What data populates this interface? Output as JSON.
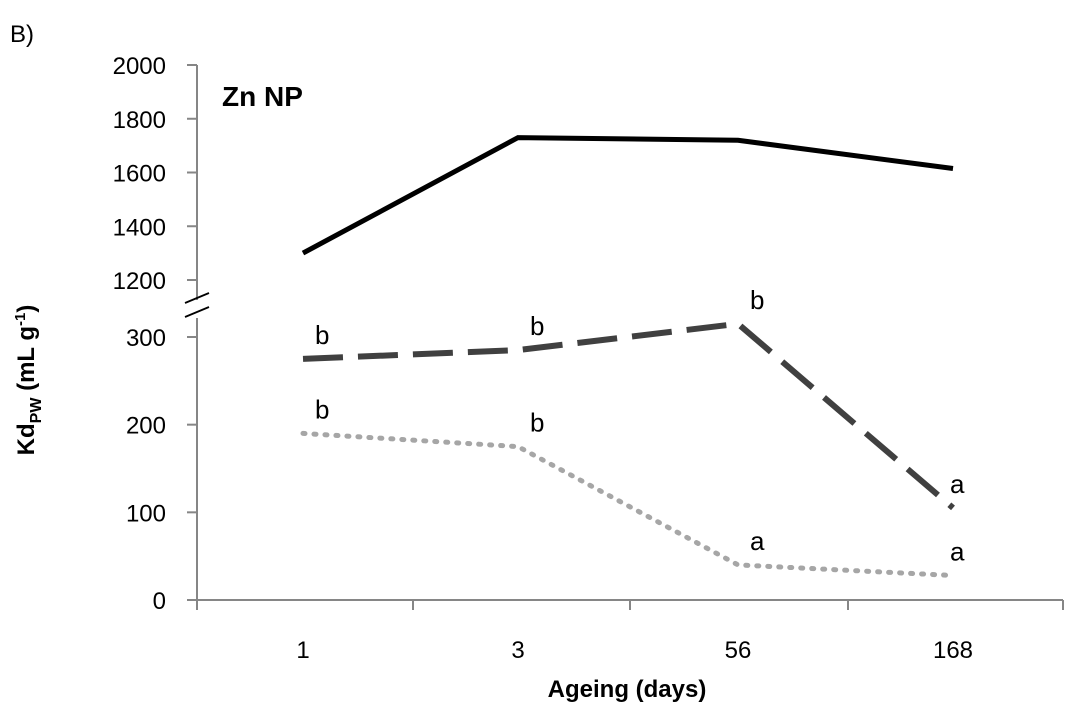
{
  "chart_data": {
    "type": "line",
    "panel_label": "B)",
    "title": "Zn NP",
    "xlabel": "Ageing (days)",
    "ylabel": {
      "main": "Kd",
      "subscript": "PW",
      "unit_open": " (mL g",
      "superscript": "-1",
      "unit_close": ")"
    },
    "categories": [
      "1",
      "3",
      "56",
      "168"
    ],
    "y_axis": {
      "broken": true,
      "lower": {
        "range": [
          0,
          300
        ],
        "ticks": [
          "0",
          "100",
          "200",
          "300"
        ]
      },
      "upper": {
        "range": [
          1200,
          2000
        ],
        "ticks": [
          "1200",
          "1400",
          "1600",
          "2000",
          "1800"
        ]
      }
    },
    "series": [
      {
        "style": "solid",
        "color": "#000000",
        "segment": "upper",
        "values": [
          1300,
          1730,
          1720,
          1615
        ],
        "letters": [
          "",
          "",
          "",
          ""
        ]
      },
      {
        "style": "dashed",
        "color": "#404040",
        "segment": "lower",
        "values": [
          275,
          285,
          315,
          105
        ],
        "letters": [
          "b",
          "b",
          "b",
          "a"
        ]
      },
      {
        "style": "dotted",
        "color": "#a6a6a6",
        "segment": "lower",
        "values": [
          190,
          175,
          40,
          28
        ],
        "letters": [
          "b",
          "b",
          "a",
          "a"
        ]
      }
    ],
    "grid": false,
    "legend": "none"
  }
}
